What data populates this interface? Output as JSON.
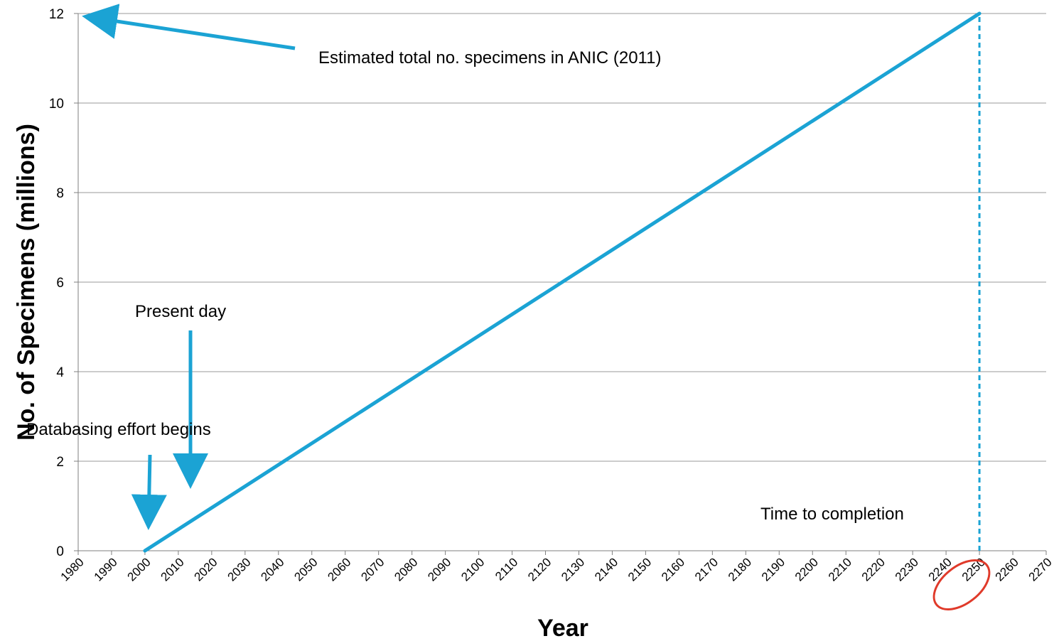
{
  "chart_data": {
    "type": "line",
    "xlabel": "Year",
    "ylabel": "No. of Specimens (millions)",
    "xlim": [
      1980,
      2270
    ],
    "ylim": [
      0,
      12
    ],
    "x_ticks": [
      1980,
      1990,
      2000,
      2010,
      2020,
      2030,
      2040,
      2050,
      2060,
      2070,
      2080,
      2090,
      2100,
      2110,
      2120,
      2130,
      2140,
      2150,
      2160,
      2170,
      2180,
      2190,
      2200,
      2210,
      2220,
      2230,
      2240,
      2250,
      2260,
      2270
    ],
    "y_ticks": [
      0,
      2,
      4,
      6,
      8,
      10,
      12
    ],
    "grid": true,
    "legend": "none",
    "series": [
      {
        "color": "#1ba3d4",
        "x": [
          2000,
          2250
        ],
        "y": [
          0,
          12
        ]
      }
    ],
    "reference_lines": [
      {
        "orientation": "vertical",
        "style": "dashed",
        "x": 2250,
        "y_range": [
          0,
          12
        ],
        "color": "#1ba3d4"
      }
    ],
    "annotations": [
      {
        "id": "ann-total",
        "text": "Estimated total no. specimens in ANIC (2011)",
        "target": [
          1982,
          11.9
        ]
      },
      {
        "id": "ann-present",
        "text": "Present day",
        "target": [
          2013,
          1.4
        ]
      },
      {
        "id": "ann-database",
        "text": "Databasing effort begins",
        "target": [
          2001,
          0.45
        ]
      },
      {
        "id": "ann-completion",
        "text": "Time to completion"
      }
    ],
    "highlight": {
      "type": "ellipse",
      "around_tick": 2250,
      "color": "#e03a2a"
    }
  }
}
